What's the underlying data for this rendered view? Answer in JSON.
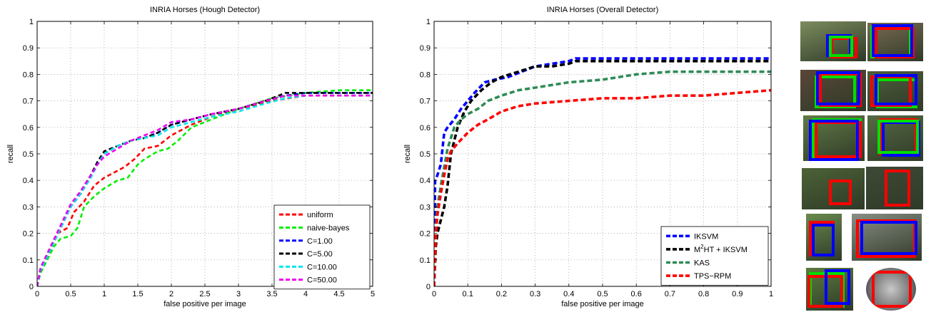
{
  "chart_data": [
    {
      "type": "line",
      "title": "INRIA Horses (Hough Detector)",
      "xlabel": "false positive per image",
      "ylabel": "recall",
      "xlim": [
        0,
        5
      ],
      "ylim": [
        0,
        1
      ],
      "xticks": [
        0,
        0.5,
        1,
        1.5,
        2,
        2.5,
        3,
        3.5,
        4,
        4.5,
        5
      ],
      "yticks": [
        0,
        0.1,
        0.2,
        0.3,
        0.4,
        0.5,
        0.6,
        0.7,
        0.8,
        0.9,
        1
      ],
      "xtick_labels": [
        "0",
        "0.5",
        "1",
        "1.5",
        "2",
        "2.5",
        "3",
        "3.5",
        "4",
        "4.5",
        "5"
      ],
      "ytick_labels": [
        "0",
        "0.1",
        "0.2",
        "0.3",
        "0.4",
        "0.5",
        "0.6",
        "0.7",
        "0.8",
        "0.9",
        "1"
      ],
      "grid": true,
      "legend_position": "bottom-right",
      "series": [
        {
          "name": "uniform",
          "color": "#ff0000",
          "x": [
            0,
            0.05,
            0.15,
            0.3,
            0.45,
            0.55,
            0.7,
            0.85,
            1.0,
            1.15,
            1.3,
            1.45,
            1.6,
            1.8,
            2.0,
            2.3,
            2.6,
            3.0,
            3.5,
            4.0,
            4.5,
            5.0
          ],
          "y": [
            0,
            0.06,
            0.12,
            0.2,
            0.22,
            0.28,
            0.32,
            0.38,
            0.41,
            0.43,
            0.45,
            0.48,
            0.52,
            0.53,
            0.57,
            0.61,
            0.64,
            0.67,
            0.7,
            0.72,
            0.72,
            0.72
          ]
        },
        {
          "name": "naive-bayes",
          "color": "#00ee00",
          "x": [
            0,
            0.05,
            0.15,
            0.25,
            0.35,
            0.5,
            0.6,
            0.7,
            0.85,
            1.0,
            1.2,
            1.35,
            1.5,
            1.6,
            1.8,
            1.95,
            2.1,
            2.3,
            2.6,
            3.0,
            3.5,
            4.0,
            4.5,
            5.0
          ],
          "y": [
            0,
            0.05,
            0.1,
            0.15,
            0.18,
            0.19,
            0.22,
            0.3,
            0.34,
            0.37,
            0.4,
            0.41,
            0.46,
            0.48,
            0.51,
            0.52,
            0.55,
            0.6,
            0.63,
            0.67,
            0.71,
            0.73,
            0.74,
            0.74
          ]
        },
        {
          "name": "C=1.00",
          "color": "#0000ff",
          "x": [
            0,
            0.05,
            0.2,
            0.35,
            0.5,
            0.65,
            0.8,
            0.9,
            1.0,
            1.2,
            1.4,
            1.6,
            1.8,
            2.0,
            2.3,
            2.6,
            3.0,
            3.4,
            3.7,
            4.0,
            4.5,
            5.0
          ],
          "y": [
            0,
            0.06,
            0.14,
            0.22,
            0.3,
            0.35,
            0.42,
            0.47,
            0.5,
            0.53,
            0.55,
            0.56,
            0.58,
            0.61,
            0.63,
            0.65,
            0.67,
            0.7,
            0.72,
            0.73,
            0.73,
            0.73
          ]
        },
        {
          "name": "C=5.00",
          "color": "#000000",
          "x": [
            0,
            0.05,
            0.2,
            0.35,
            0.5,
            0.65,
            0.8,
            0.9,
            1.0,
            1.2,
            1.4,
            1.6,
            1.8,
            2.0,
            2.3,
            2.6,
            3.0,
            3.4,
            3.7,
            4.0,
            4.5,
            5.0
          ],
          "y": [
            0,
            0.06,
            0.14,
            0.22,
            0.3,
            0.35,
            0.42,
            0.47,
            0.51,
            0.53,
            0.55,
            0.56,
            0.58,
            0.61,
            0.63,
            0.65,
            0.67,
            0.7,
            0.73,
            0.73,
            0.73,
            0.73
          ]
        },
        {
          "name": "C=10.00",
          "color": "#00e5ee",
          "x": [
            0,
            0.05,
            0.2,
            0.35,
            0.5,
            0.65,
            0.8,
            0.9,
            1.0,
            1.2,
            1.4,
            1.6,
            1.8,
            2.0,
            2.3,
            2.6,
            3.0,
            3.4,
            3.7,
            4.0,
            4.5,
            5.0
          ],
          "y": [
            0,
            0.06,
            0.14,
            0.22,
            0.3,
            0.35,
            0.41,
            0.46,
            0.5,
            0.53,
            0.55,
            0.56,
            0.57,
            0.6,
            0.62,
            0.64,
            0.66,
            0.69,
            0.71,
            0.72,
            0.72,
            0.72
          ]
        },
        {
          "name": "C=50.00",
          "color": "#ee00ee",
          "x": [
            0,
            0.05,
            0.2,
            0.35,
            0.5,
            0.65,
            0.8,
            0.9,
            1.0,
            1.2,
            1.4,
            1.6,
            1.8,
            2.0,
            2.3,
            2.6,
            3.0,
            3.4,
            3.7,
            4.0,
            4.5,
            5.0
          ],
          "y": [
            0,
            0.07,
            0.15,
            0.23,
            0.31,
            0.36,
            0.42,
            0.46,
            0.49,
            0.52,
            0.55,
            0.57,
            0.59,
            0.62,
            0.63,
            0.65,
            0.67,
            0.7,
            0.72,
            0.72,
            0.72,
            0.72
          ]
        }
      ]
    },
    {
      "type": "line",
      "title": "INRIA Horses (Overall Detector)",
      "xlabel": "false positive per image",
      "ylabel": "recall",
      "xlim": [
        0,
        1
      ],
      "ylim": [
        0,
        1
      ],
      "xticks": [
        0,
        0.1,
        0.2,
        0.3,
        0.4,
        0.5,
        0.6,
        0.7,
        0.8,
        0.9,
        1
      ],
      "yticks": [
        0,
        0.1,
        0.2,
        0.3,
        0.4,
        0.5,
        0.6,
        0.7,
        0.8,
        0.9,
        1
      ],
      "xtick_labels": [
        "0",
        "0.1",
        "0.2",
        "0.3",
        "0.4",
        "0.5",
        "0.6",
        "0.7",
        "0.8",
        "0.9",
        "1"
      ],
      "ytick_labels": [
        "0",
        "0.1",
        "0.2",
        "0.3",
        "0.4",
        "0.5",
        "0.6",
        "0.7",
        "0.8",
        "0.9",
        "1"
      ],
      "grid": true,
      "legend_position": "bottom-right",
      "series": [
        {
          "name": "IKSVM",
          "color": "#0000ff",
          "legend_label": "IKSVM",
          "x": [
            0,
            0.003,
            0.01,
            0.02,
            0.03,
            0.04,
            0.06,
            0.08,
            0.1,
            0.12,
            0.15,
            0.18,
            0.22,
            0.26,
            0.3,
            0.35,
            0.4,
            0.42,
            0.5,
            0.6,
            0.7,
            0.8,
            0.9,
            1.0
          ],
          "y": [
            0,
            0.4,
            0.42,
            0.46,
            0.58,
            0.6,
            0.63,
            0.67,
            0.7,
            0.73,
            0.77,
            0.78,
            0.79,
            0.81,
            0.83,
            0.84,
            0.85,
            0.86,
            0.86,
            0.86,
            0.86,
            0.86,
            0.86,
            0.86
          ]
        },
        {
          "name": "M2HT + IKSVM",
          "color": "#000000",
          "legend_label": "HT + IKSVM",
          "legend_prefix": "M",
          "legend_sup": "2",
          "x": [
            0,
            0.005,
            0.01,
            0.02,
            0.03,
            0.04,
            0.05,
            0.07,
            0.09,
            0.11,
            0.14,
            0.17,
            0.2,
            0.25,
            0.3,
            0.35,
            0.4,
            0.42,
            0.5,
            0.6,
            0.7,
            0.8,
            0.9,
            1.0
          ],
          "y": [
            0,
            0.15,
            0.2,
            0.25,
            0.3,
            0.38,
            0.5,
            0.6,
            0.66,
            0.7,
            0.74,
            0.77,
            0.79,
            0.81,
            0.83,
            0.83,
            0.84,
            0.85,
            0.85,
            0.85,
            0.85,
            0.85,
            0.85,
            0.85
          ]
        },
        {
          "name": "KAS",
          "color": "#2e8b57",
          "legend_label": "KAS",
          "x": [
            0,
            0.005,
            0.01,
            0.02,
            0.03,
            0.04,
            0.05,
            0.06,
            0.08,
            0.1,
            0.13,
            0.16,
            0.2,
            0.25,
            0.3,
            0.4,
            0.5,
            0.6,
            0.7,
            0.8,
            0.9,
            1.0
          ],
          "y": [
            0,
            0.2,
            0.3,
            0.38,
            0.45,
            0.52,
            0.56,
            0.6,
            0.63,
            0.65,
            0.67,
            0.7,
            0.72,
            0.74,
            0.75,
            0.77,
            0.78,
            0.8,
            0.81,
            0.81,
            0.81,
            0.81
          ]
        },
        {
          "name": "TPS-RPM",
          "color": "#ff0000",
          "legend_label": "TPS−RPM",
          "x": [
            0,
            0.005,
            0.01,
            0.02,
            0.03,
            0.04,
            0.05,
            0.07,
            0.1,
            0.13,
            0.16,
            0.2,
            0.25,
            0.3,
            0.4,
            0.5,
            0.6,
            0.7,
            0.8,
            0.9,
            1.0
          ],
          "y": [
            0,
            0.2,
            0.27,
            0.35,
            0.42,
            0.48,
            0.51,
            0.54,
            0.58,
            0.61,
            0.63,
            0.66,
            0.68,
            0.69,
            0.7,
            0.71,
            0.71,
            0.72,
            0.72,
            0.73,
            0.74
          ]
        }
      ]
    }
  ],
  "thumbnails": [
    {
      "bg": "#7d8c5e",
      "boxes": [
        {
          "color": "#ff0000"
        },
        {
          "color": "#0000ff"
        },
        {
          "color": "#00dd00"
        }
      ]
    },
    {
      "bg": "#7a6a52",
      "boxes": [
        {
          "color": "#00dd00"
        },
        {
          "color": "#ff0000"
        },
        {
          "color": "#0000ff"
        }
      ]
    },
    {
      "bg": "#5a4638",
      "boxes": [
        {
          "color": "#00dd00"
        },
        {
          "color": "#ff0000"
        },
        {
          "color": "#0000ff"
        }
      ]
    },
    {
      "bg": "#4e5d3c",
      "boxes": [
        {
          "color": "#00dd00"
        },
        {
          "color": "#ff0000"
        },
        {
          "color": "#0000ff"
        }
      ]
    },
    {
      "bg": "#627a46",
      "boxes": [
        {
          "color": "#00dd00"
        },
        {
          "color": "#ff0000"
        },
        {
          "color": "#0000ff"
        }
      ]
    },
    {
      "bg": "#566a44",
      "boxes": [
        {
          "color": "#ff0000"
        },
        {
          "color": "#0000ff"
        },
        {
          "color": "#00dd00"
        }
      ]
    },
    {
      "bg": "#4c6236",
      "boxes": [
        {
          "color": "#ff0000"
        }
      ]
    },
    {
      "bg": "#3e4a36",
      "boxes": [
        {
          "color": "#ff0000"
        }
      ]
    },
    {
      "bg": "#6a8a4e",
      "boxes": [
        {
          "color": "#ff0000"
        },
        {
          "color": "#0000ff"
        }
      ]
    },
    {
      "bg": "#8a8e86",
      "boxes": [
        {
          "color": "#ff0000"
        },
        {
          "color": "#0000ff"
        }
      ]
    },
    {
      "bg": "#5c7a3e",
      "boxes": [
        {
          "color": "#00dd00"
        },
        {
          "color": "#ff0000"
        },
        {
          "color": "#0000ff"
        }
      ]
    },
    {
      "bg": "#5a5a5a",
      "boxes": [
        {
          "color": "#ff0000"
        }
      ]
    }
  ]
}
